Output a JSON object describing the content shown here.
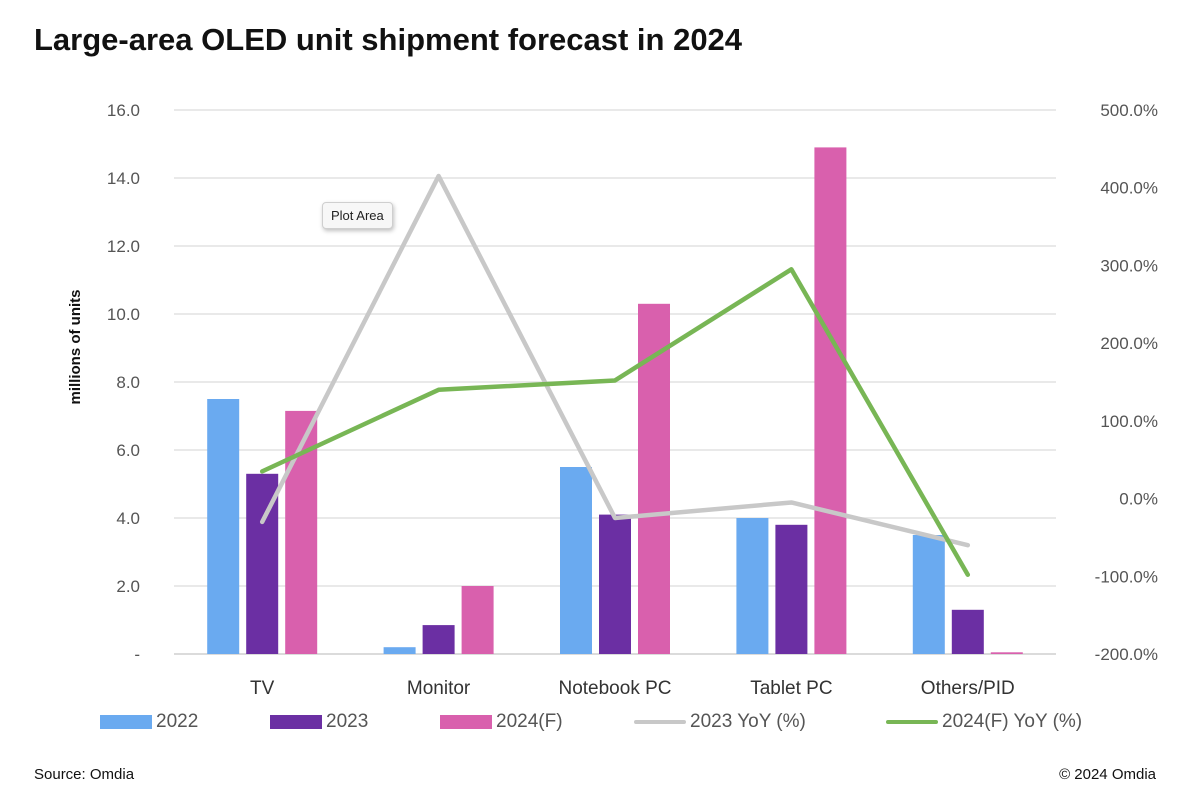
{
  "chart_data": {
    "type": "bar",
    "title": "Large-area OLED unit shipment forecast in 2024",
    "ylabel": "millions of units",
    "categories": [
      "TV",
      "Monitor",
      "Notebook PC",
      "Tablet PC",
      "Others/PID"
    ],
    "ylim": [
      0,
      16
    ],
    "y_ticks": [
      "-",
      "2.0",
      "4.0",
      "6.0",
      "8.0",
      "10.0",
      "12.0",
      "14.0",
      "16.0"
    ],
    "y2lim": [
      -200,
      500
    ],
    "y2_ticks": [
      "-200.0%",
      "-100.0%",
      "0.0%",
      "100.0%",
      "200.0%",
      "300.0%",
      "400.0%",
      "500.0%"
    ],
    "grid": true,
    "legend_placement": "bottom",
    "series": [
      {
        "name": "2022",
        "type": "bar",
        "axis": "left",
        "color": "#6aaaf0",
        "values": [
          7.5,
          0.2,
          5.5,
          4.0,
          3.5
        ]
      },
      {
        "name": "2023",
        "type": "bar",
        "axis": "left",
        "color": "#6b2fa3",
        "values": [
          5.3,
          0.85,
          4.1,
          3.8,
          1.3
        ]
      },
      {
        "name": "2024(F)",
        "type": "bar",
        "axis": "left",
        "color": "#d960ad",
        "values": [
          7.15,
          2.0,
          10.3,
          14.9,
          0.05
        ]
      },
      {
        "name": "2023 YoY (%)",
        "type": "line",
        "axis": "right",
        "color": "#c8c8c8",
        "values": [
          -30,
          415,
          -25,
          -5,
          -60
        ]
      },
      {
        "name": "2024(F) YoY (%)",
        "type": "line",
        "axis": "right",
        "color": "#78b655",
        "values": [
          35,
          140,
          152,
          295,
          -98
        ]
      }
    ]
  },
  "tooltip": "Plot Area",
  "source": "Source: Omdia",
  "copyright": "© 2024 Omdia"
}
